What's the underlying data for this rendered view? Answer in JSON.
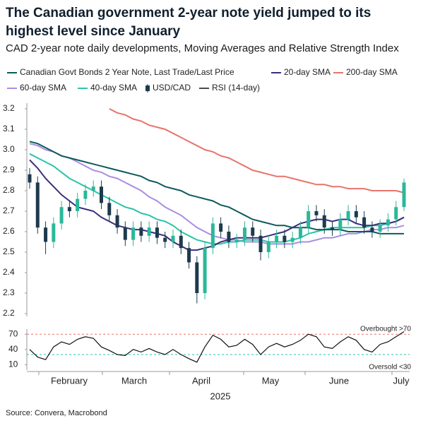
{
  "chart_data": {
    "type": "candlestick",
    "title": "The Canadian government 2-year note yield jumped to its highest level since January",
    "subtitle": "CAD 2-year note daily developments, Moving Averages and Relative Strength Index",
    "source": "Source: Convera, Macrobond",
    "x_labels": [
      "February",
      "March",
      "April",
      "May",
      "June",
      "July"
    ],
    "x_year": "2025",
    "ylim": [
      2.2,
      3.2
    ],
    "yticks": [
      2.2,
      2.3,
      2.4,
      2.5,
      2.6,
      2.7,
      2.8,
      2.9,
      {
        "value": 3,
        "label": "3.0"
      },
      3.1,
      3.2
    ],
    "ohlc": {
      "name": "USD/CAD",
      "up_color": "#2bb89a",
      "down_color": "#1d3a4e",
      "open": [
        2.88,
        2.84,
        2.62,
        2.55,
        2.64,
        2.72,
        2.7,
        2.76,
        2.8,
        2.82,
        2.74,
        2.68,
        2.62,
        2.56,
        2.62,
        2.58,
        2.62,
        2.57,
        2.55,
        2.58,
        2.52,
        2.45,
        2.3,
        2.52,
        2.64,
        2.6,
        2.55,
        2.56,
        2.62,
        2.58,
        2.5,
        2.55,
        2.58,
        2.55,
        2.57,
        2.62,
        2.7,
        2.68,
        2.62,
        2.61,
        2.66,
        2.7,
        2.67,
        2.62,
        2.6,
        2.63,
        2.66,
        2.72
      ],
      "high": [
        2.91,
        2.87,
        2.65,
        2.67,
        2.75,
        2.75,
        2.79,
        2.83,
        2.85,
        2.85,
        2.77,
        2.71,
        2.65,
        2.65,
        2.65,
        2.65,
        2.65,
        2.6,
        2.61,
        2.61,
        2.55,
        2.48,
        2.55,
        2.67,
        2.67,
        2.63,
        2.59,
        2.65,
        2.65,
        2.61,
        2.58,
        2.61,
        2.61,
        2.6,
        2.65,
        2.73,
        2.73,
        2.71,
        2.65,
        2.69,
        2.73,
        2.73,
        2.7,
        2.65,
        2.66,
        2.69,
        2.75,
        2.86
      ],
      "low": [
        2.81,
        2.59,
        2.49,
        2.52,
        2.61,
        2.67,
        2.67,
        2.73,
        2.77,
        2.71,
        2.65,
        2.59,
        2.53,
        2.53,
        2.55,
        2.55,
        2.54,
        2.52,
        2.52,
        2.49,
        2.42,
        2.25,
        2.27,
        2.49,
        2.57,
        2.52,
        2.52,
        2.53,
        2.55,
        2.46,
        2.47,
        2.52,
        2.52,
        2.52,
        2.54,
        2.59,
        2.65,
        2.59,
        2.58,
        2.58,
        2.63,
        2.64,
        2.59,
        2.57,
        2.57,
        2.6,
        2.63,
        2.7
      ],
      "close": [
        2.84,
        2.62,
        2.55,
        2.64,
        2.72,
        2.7,
        2.76,
        2.8,
        2.82,
        2.74,
        2.68,
        2.62,
        2.56,
        2.62,
        2.58,
        2.62,
        2.57,
        2.55,
        2.58,
        2.52,
        2.45,
        2.3,
        2.52,
        2.64,
        2.6,
        2.55,
        2.56,
        2.62,
        2.58,
        2.5,
        2.55,
        2.58,
        2.55,
        2.57,
        2.62,
        2.7,
        2.68,
        2.62,
        2.61,
        2.66,
        2.7,
        2.67,
        2.62,
        2.6,
        2.63,
        2.66,
        2.72,
        2.84
      ]
    },
    "series": [
      {
        "name": "Canadian Govt Bonds 2 Year Note, Last Trade/Last Price",
        "color": "#0e5a5c",
        "values": [
          3.04,
          3.03,
          3.01,
          2.99,
          2.97,
          2.96,
          2.95,
          2.94,
          2.93,
          2.92,
          2.91,
          2.9,
          2.89,
          2.88,
          2.87,
          2.85,
          2.84,
          2.82,
          2.81,
          2.8,
          2.78,
          2.77,
          2.76,
          2.75,
          2.73,
          2.72,
          2.7,
          2.68,
          2.66,
          2.65,
          2.64,
          2.63,
          2.63,
          2.62,
          2.62,
          2.62,
          2.61,
          2.61,
          2.61,
          2.61,
          2.6,
          2.6,
          2.6,
          2.6,
          2.59,
          2.59,
          2.59,
          2.59
        ]
      },
      {
        "name": "20-day SMA",
        "color": "#3a2f7a",
        "values": [
          2.95,
          2.91,
          2.86,
          2.82,
          2.78,
          2.75,
          2.72,
          2.71,
          2.7,
          2.67,
          2.65,
          2.63,
          2.62,
          2.61,
          2.61,
          2.6,
          2.59,
          2.58,
          2.55,
          2.53,
          2.51,
          2.51,
          2.52,
          2.53,
          2.55,
          2.56,
          2.57,
          2.57,
          2.57,
          2.57,
          2.58,
          2.59,
          2.6,
          2.62,
          2.64,
          2.65,
          2.66,
          2.66,
          2.65,
          2.66,
          2.66,
          2.64,
          2.63,
          2.63,
          2.64,
          2.64,
          2.65,
          2.67
        ]
      },
      {
        "name": "200-day SMA",
        "color": "#e8746a",
        "values": [
          null,
          null,
          null,
          null,
          null,
          null,
          null,
          null,
          null,
          null,
          3.2,
          3.18,
          3.17,
          3.15,
          3.14,
          3.12,
          3.11,
          3.1,
          3.08,
          3.06,
          3.04,
          3.02,
          3.0,
          2.99,
          2.97,
          2.96,
          2.94,
          2.92,
          2.9,
          2.89,
          2.88,
          2.87,
          2.87,
          2.86,
          2.85,
          2.84,
          2.83,
          2.83,
          2.82,
          2.82,
          2.81,
          2.81,
          2.81,
          2.8,
          2.8,
          2.8,
          2.8,
          2.79
        ]
      },
      {
        "name": "60-day SMA",
        "color": "#a98ee0",
        "values": [
          3.03,
          3.02,
          3.0,
          2.99,
          2.97,
          2.96,
          2.94,
          2.92,
          2.9,
          2.89,
          2.87,
          2.86,
          2.84,
          2.82,
          2.8,
          2.77,
          2.75,
          2.72,
          2.7,
          2.68,
          2.65,
          2.62,
          2.6,
          2.58,
          2.57,
          2.56,
          2.56,
          2.55,
          2.55,
          2.55,
          2.54,
          2.54,
          2.54,
          2.54,
          2.55,
          2.55,
          2.56,
          2.57,
          2.57,
          2.58,
          2.59,
          2.59,
          2.6,
          2.61,
          2.61,
          2.62,
          2.62,
          2.63
        ]
      },
      {
        "name": "40-day SMA",
        "color": "#2bc4a8",
        "values": [
          2.98,
          2.96,
          2.94,
          2.92,
          2.89,
          2.86,
          2.84,
          2.82,
          2.8,
          2.78,
          2.76,
          2.74,
          2.72,
          2.71,
          2.69,
          2.68,
          2.66,
          2.65,
          2.63,
          2.6,
          2.58,
          2.56,
          2.55,
          2.54,
          2.54,
          2.55,
          2.55,
          2.56,
          2.56,
          2.56,
          2.55,
          2.55,
          2.55,
          2.56,
          2.57,
          2.59,
          2.6,
          2.61,
          2.62,
          2.62,
          2.62,
          2.62,
          2.62,
          2.63,
          2.63,
          2.64,
          2.65,
          2.67
        ]
      }
    ],
    "rsi": {
      "name": "RSI (14-day)",
      "color": "#111111",
      "ylim": [
        5,
        80
      ],
      "yticks": [
        10,
        40,
        70
      ],
      "overbought": 70,
      "oversold": 30,
      "overbought_label": "Overbought >70",
      "oversold_label": "Oversold <30",
      "overbought_color": "#e8746a",
      "oversold_color": "#2bc4a8",
      "values": [
        40,
        25,
        20,
        45,
        55,
        50,
        60,
        65,
        62,
        45,
        38,
        30,
        28,
        40,
        35,
        42,
        35,
        30,
        40,
        30,
        22,
        15,
        45,
        68,
        60,
        45,
        48,
        60,
        50,
        30,
        45,
        52,
        45,
        50,
        58,
        70,
        65,
        45,
        42,
        55,
        65,
        58,
        40,
        35,
        50,
        55,
        65,
        75
      ]
    }
  }
}
